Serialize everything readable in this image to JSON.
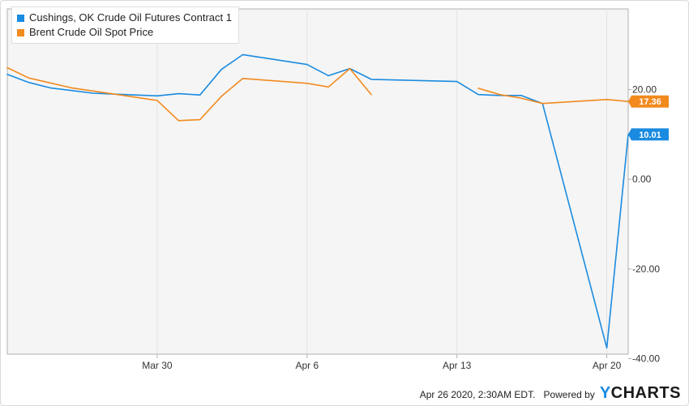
{
  "chart_data": {
    "type": "line",
    "title": "",
    "xlabel": "",
    "ylabel": "",
    "x_range": [
      "2020-03-23",
      "2020-04-21"
    ],
    "ylim": [
      -39,
      38
    ],
    "x_ticks": [
      {
        "date": "2020-03-30",
        "label": "Mar 30"
      },
      {
        "date": "2020-04-06",
        "label": "Apr 6"
      },
      {
        "date": "2020-04-13",
        "label": "Apr 13"
      },
      {
        "date": "2020-04-20",
        "label": "Apr 20"
      }
    ],
    "y_ticks": [
      {
        "value": 20,
        "label": "20.00"
      },
      {
        "value": 0,
        "label": "0.00"
      },
      {
        "value": -20,
        "label": "-20.00"
      },
      {
        "value": -40,
        "label": "-40.00"
      }
    ],
    "grid": "vertical",
    "legend_position": "top-left",
    "series": [
      {
        "name": "Cushings, OK Crude Oil Futures Contract 1",
        "color": "#1a8be0",
        "last_label": "10.01",
        "points": [
          [
            "2020-03-23",
            23.4
          ],
          [
            "2020-03-24",
            21.6
          ],
          [
            "2020-03-25",
            20.4
          ],
          [
            "2020-03-26",
            19.8
          ],
          [
            "2020-03-27",
            19.2
          ],
          [
            "2020-03-30",
            18.6
          ],
          [
            "2020-03-31",
            19.1
          ],
          [
            "2020-04-01",
            18.8
          ],
          [
            "2020-04-02",
            24.5
          ],
          [
            "2020-04-03",
            27.8
          ],
          [
            "2020-04-06",
            25.6
          ],
          [
            "2020-04-07",
            23.1
          ],
          [
            "2020-04-08",
            24.7
          ],
          [
            "2020-04-09",
            22.3
          ],
          [
            "2020-04-13",
            21.8
          ],
          [
            "2020-04-14",
            18.9
          ],
          [
            "2020-04-15",
            18.7
          ],
          [
            "2020-04-16",
            18.7
          ],
          [
            "2020-04-17",
            16.9
          ],
          [
            "2020-04-20",
            -37.6
          ],
          [
            "2020-04-21",
            10.01
          ]
        ]
      },
      {
        "name": "Brent Crude Oil Spot Price",
        "color": "#f28a1e",
        "last_label": "17.36",
        "segments": [
          [
            [
              "2020-03-23",
              24.9
            ],
            [
              "2020-03-24",
              22.6
            ],
            [
              "2020-03-26",
              20.4
            ],
            [
              "2020-03-30",
              17.6
            ],
            [
              "2020-03-31",
              13.1
            ],
            [
              "2020-04-01",
              13.3
            ],
            [
              "2020-04-02",
              18.5
            ],
            [
              "2020-04-03",
              22.5
            ],
            [
              "2020-04-06",
              21.4
            ],
            [
              "2020-04-07",
              20.6
            ],
            [
              "2020-04-08",
              24.7
            ],
            [
              "2020-04-09",
              18.9
            ]
          ],
          [
            [
              "2020-04-14",
              20.3
            ],
            [
              "2020-04-15",
              18.9
            ],
            [
              "2020-04-16",
              18.1
            ],
            [
              "2020-04-17",
              16.9
            ],
            [
              "2020-04-20",
              17.8
            ],
            [
              "2020-04-21",
              17.36
            ]
          ]
        ]
      }
    ]
  },
  "footer": {
    "timestamp": "Apr 26 2020, 2:30AM EDT.",
    "powered_by": "Powered by",
    "logo_y": "Y",
    "logo_rest": "CHARTS"
  }
}
